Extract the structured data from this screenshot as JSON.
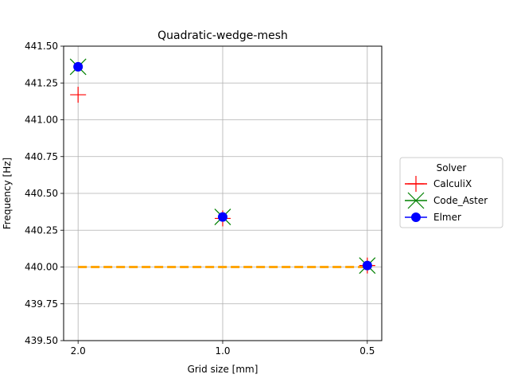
{
  "chart_data": {
    "type": "scatter",
    "title": "Quadratic-wedge-mesh",
    "xlabel": "Grid size [mm]",
    "ylabel": "Frequency [Hz]",
    "x_ticks": [
      "2.0",
      "1.0",
      "0.5"
    ],
    "x_positions": [
      0,
      1,
      2
    ],
    "xlim": [
      -0.1,
      2.1
    ],
    "ylim": [
      439.5,
      441.5
    ],
    "y_ticks": [
      439.5,
      439.75,
      440.0,
      440.25,
      440.5,
      440.75,
      441.0,
      441.25,
      441.5
    ],
    "y_tick_labels": [
      "439.50",
      "439.75",
      "440.00",
      "440.25",
      "440.50",
      "440.75",
      "441.00",
      "441.25",
      "441.50"
    ],
    "grid": true,
    "legend": {
      "title": "Solver",
      "placement": "outside-right"
    },
    "series": [
      {
        "name": "CalculiX",
        "marker": "plus",
        "color": "#ff0000",
        "y": [
          441.17,
          440.33,
          440.01
        ]
      },
      {
        "name": "Code_Aster",
        "marker": "x",
        "color": "#008000",
        "y": [
          441.36,
          440.34,
          440.01
        ]
      },
      {
        "name": "Elmer",
        "marker": "circle",
        "color": "#0000ff",
        "y": [
          441.36,
          440.34,
          440.01
        ]
      }
    ],
    "reference_line": {
      "y": 440.0,
      "color": "#ffa500",
      "style": "dashed"
    }
  }
}
